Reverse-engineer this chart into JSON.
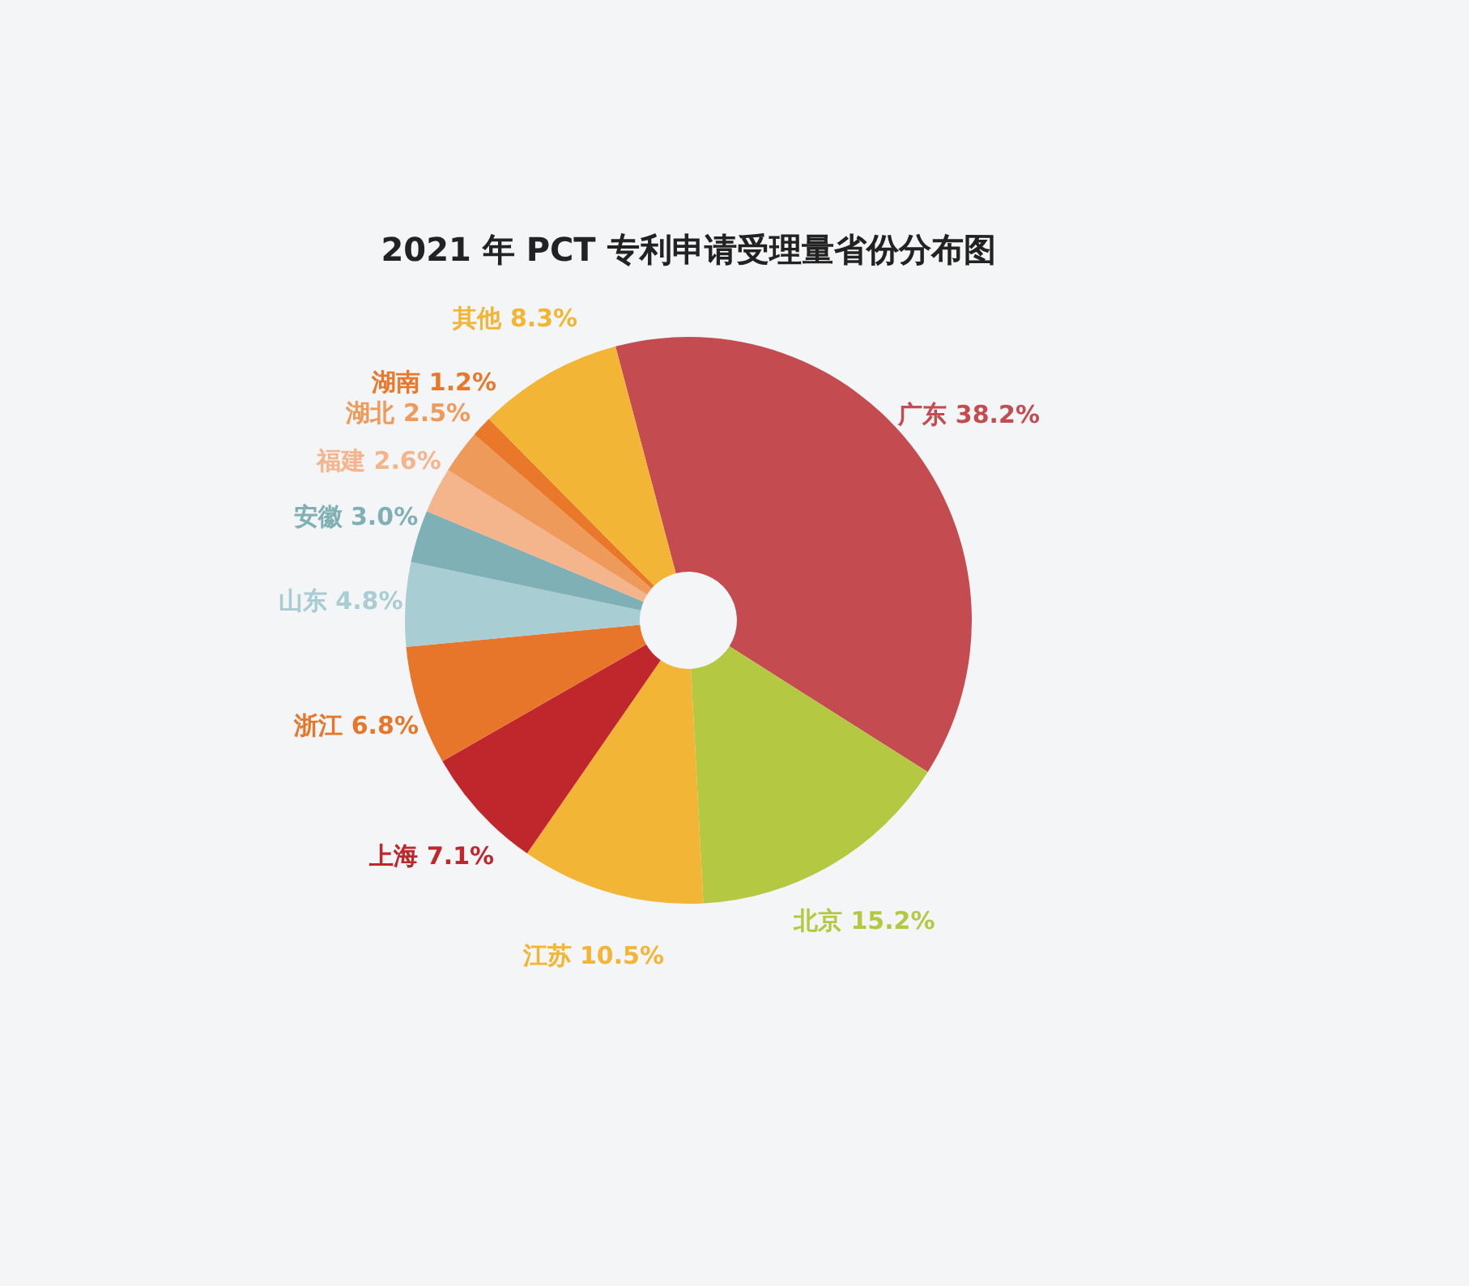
{
  "chart_data": {
    "type": "donut",
    "title": "2021 年 PCT 专利申请受理量省份分布图",
    "categories": [
      "广东",
      "北京",
      "江苏",
      "上海",
      "浙江",
      "山东",
      "安徽",
      "福建",
      "湖北",
      "湖南",
      "其他"
    ],
    "values": [
      38.2,
      15.2,
      10.5,
      7.1,
      6.8,
      4.8,
      3.0,
      2.6,
      2.5,
      1.2,
      8.3
    ],
    "value_labels": [
      "38.2%",
      "15.2%",
      "10.5%",
      "7.1%",
      "6.8%",
      "4.8%",
      "3.0%",
      "2.6%",
      "2.5%",
      "1.2%",
      "8.3%"
    ],
    "colors": [
      "#c44b4f",
      "#b5c842",
      "#f2b535",
      "#c0272d",
      "#e8762a",
      "#a8cdd3",
      "#7fb0b5",
      "#f5b58c",
      "#ee9a5a",
      "#e9782a",
      "#f2b535"
    ]
  }
}
